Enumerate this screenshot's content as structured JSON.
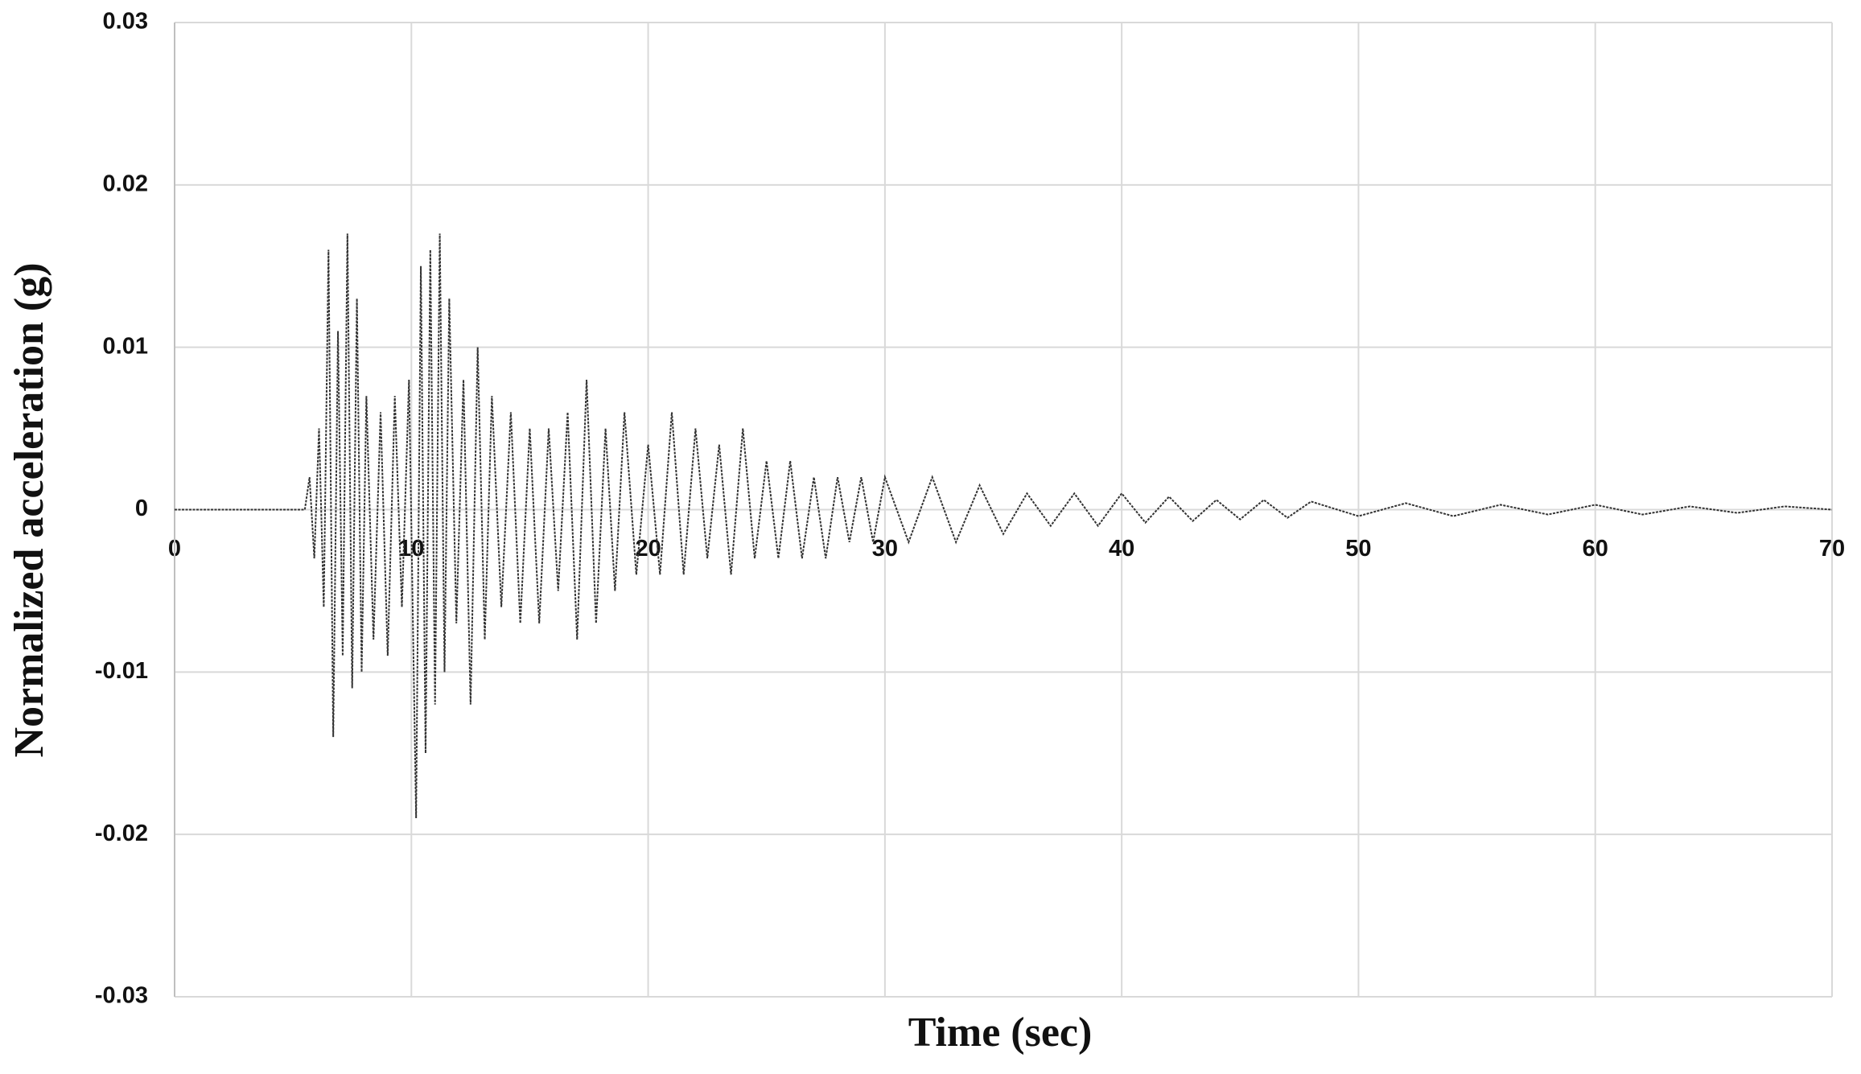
{
  "chart_data": {
    "type": "line",
    "xlabel": "Time (sec)",
    "ylabel": "Normalized acceleration (g)",
    "series": [
      {
        "name": null,
        "color": "#333333",
        "x": [
          0,
          5.5,
          5.7,
          5.9,
          6.1,
          6.3,
          6.5,
          6.7,
          6.9,
          7.1,
          7.3,
          7.5,
          7.7,
          7.9,
          8.1,
          8.4,
          8.7,
          9.0,
          9.3,
          9.6,
          9.9,
          10.2,
          10.4,
          10.6,
          10.8,
          11.0,
          11.2,
          11.4,
          11.6,
          11.9,
          12.2,
          12.5,
          12.8,
          13.1,
          13.4,
          13.8,
          14.2,
          14.6,
          15.0,
          15.4,
          15.8,
          16.2,
          16.6,
          17.0,
          17.4,
          17.8,
          18.2,
          18.6,
          19.0,
          19.5,
          20,
          20.5,
          21,
          21.5,
          22,
          22.5,
          23,
          23.5,
          24,
          24.5,
          25,
          25.5,
          26,
          26.5,
          27,
          27.5,
          28,
          28.5,
          29,
          29.5,
          30,
          31,
          32,
          33,
          34,
          35,
          36,
          37,
          38,
          39,
          40,
          41,
          42,
          43,
          44,
          45,
          46,
          47,
          48,
          50,
          52,
          54,
          56,
          58,
          60,
          62,
          64,
          66,
          68,
          70
        ],
        "values": [
          0,
          0,
          0.002,
          -0.003,
          0.005,
          -0.006,
          0.016,
          -0.014,
          0.011,
          -0.009,
          0.017,
          -0.011,
          0.013,
          -0.01,
          0.007,
          -0.008,
          0.006,
          -0.009,
          0.007,
          -0.006,
          0.008,
          -0.019,
          0.015,
          -0.015,
          0.016,
          -0.012,
          0.017,
          -0.01,
          0.013,
          -0.007,
          0.008,
          -0.012,
          0.01,
          -0.008,
          0.007,
          -0.006,
          0.006,
          -0.007,
          0.005,
          -0.007,
          0.005,
          -0.005,
          0.006,
          -0.008,
          0.008,
          -0.007,
          0.005,
          -0.005,
          0.006,
          -0.004,
          0.004,
          -0.004,
          0.006,
          -0.004,
          0.005,
          -0.003,
          0.004,
          -0.004,
          0.005,
          -0.003,
          0.003,
          -0.003,
          0.003,
          -0.003,
          0.002,
          -0.003,
          0.002,
          -0.002,
          0.002,
          -0.002,
          0.002,
          -0.002,
          0.002,
          -0.002,
          0.0015,
          -0.0015,
          0.001,
          -0.001,
          0.001,
          -0.001,
          0.001,
          -0.0008,
          0.0008,
          -0.0007,
          0.0006,
          -0.0006,
          0.0006,
          -0.0005,
          0.0005,
          -0.0004,
          0.0004,
          -0.0004,
          0.0003,
          -0.0003,
          0.0003,
          -0.0003,
          0.0002,
          -0.0002,
          0.0002,
          0
        ]
      }
    ],
    "xlim": [
      0,
      70
    ],
    "xticks": [
      0,
      10,
      20,
      30,
      40,
      50,
      60,
      70
    ],
    "ylim": [
      -0.03,
      0.03
    ],
    "yticks": [
      -0.03,
      -0.02,
      -0.01,
      0,
      0.01,
      0.02,
      0.03
    ],
    "grid": true
  }
}
